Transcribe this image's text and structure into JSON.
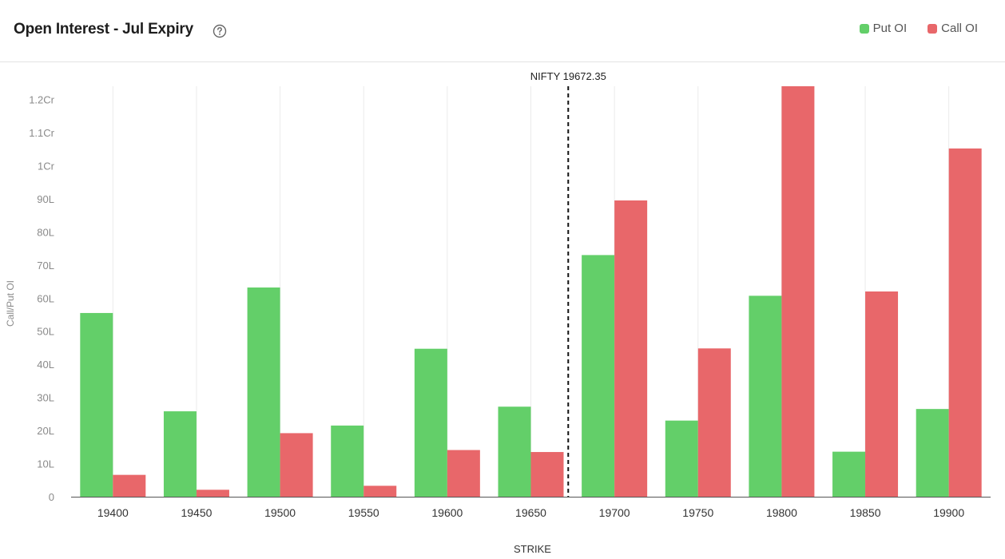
{
  "header": {
    "title": "Open Interest - Jul Expiry",
    "help_icon": "question-circle-icon"
  },
  "legend": [
    {
      "label": "Put OI",
      "color": "#63cf69"
    },
    {
      "label": "Call OI",
      "color": "#e8676a"
    }
  ],
  "chart_data": {
    "type": "bar",
    "xlabel": "STRIKE",
    "ylabel": "Call/Put OI",
    "categories": [
      "19400",
      "19450",
      "19500",
      "19550",
      "19600",
      "19650",
      "19700",
      "19750",
      "19800",
      "19850",
      "19900"
    ],
    "series": [
      {
        "name": "Put OI",
        "color": "#63cf69",
        "values": [
          5550000,
          2580000,
          6320000,
          2150000,
          4470000,
          2720000,
          7300000,
          2300000,
          6070000,
          1360000,
          2650000
        ]
      },
      {
        "name": "Call OI",
        "color": "#e8676a",
        "values": [
          660000,
          210000,
          1920000,
          330000,
          1410000,
          1350000,
          8950000,
          4480000,
          12400000,
          6200000,
          10520000
        ]
      }
    ],
    "yticks": [
      {
        "value": 0,
        "label": "0"
      },
      {
        "value": 1000000,
        "label": "10L"
      },
      {
        "value": 2000000,
        "label": "20L"
      },
      {
        "value": 3000000,
        "label": "30L"
      },
      {
        "value": 4000000,
        "label": "40L"
      },
      {
        "value": 5000000,
        "label": "50L"
      },
      {
        "value": 6000000,
        "label": "60L"
      },
      {
        "value": 7000000,
        "label": "70L"
      },
      {
        "value": 8000000,
        "label": "80L"
      },
      {
        "value": 9000000,
        "label": "90L"
      },
      {
        "value": 10000000,
        "label": "1Cr"
      },
      {
        "value": 11000000,
        "label": "1.1Cr"
      },
      {
        "value": 12000000,
        "label": "1.2Cr"
      }
    ],
    "ylim": [
      0,
      12400000
    ],
    "spot_marker": {
      "label": "NIFTY 19672.35",
      "value": 19672.35
    },
    "grid": "vertical"
  }
}
